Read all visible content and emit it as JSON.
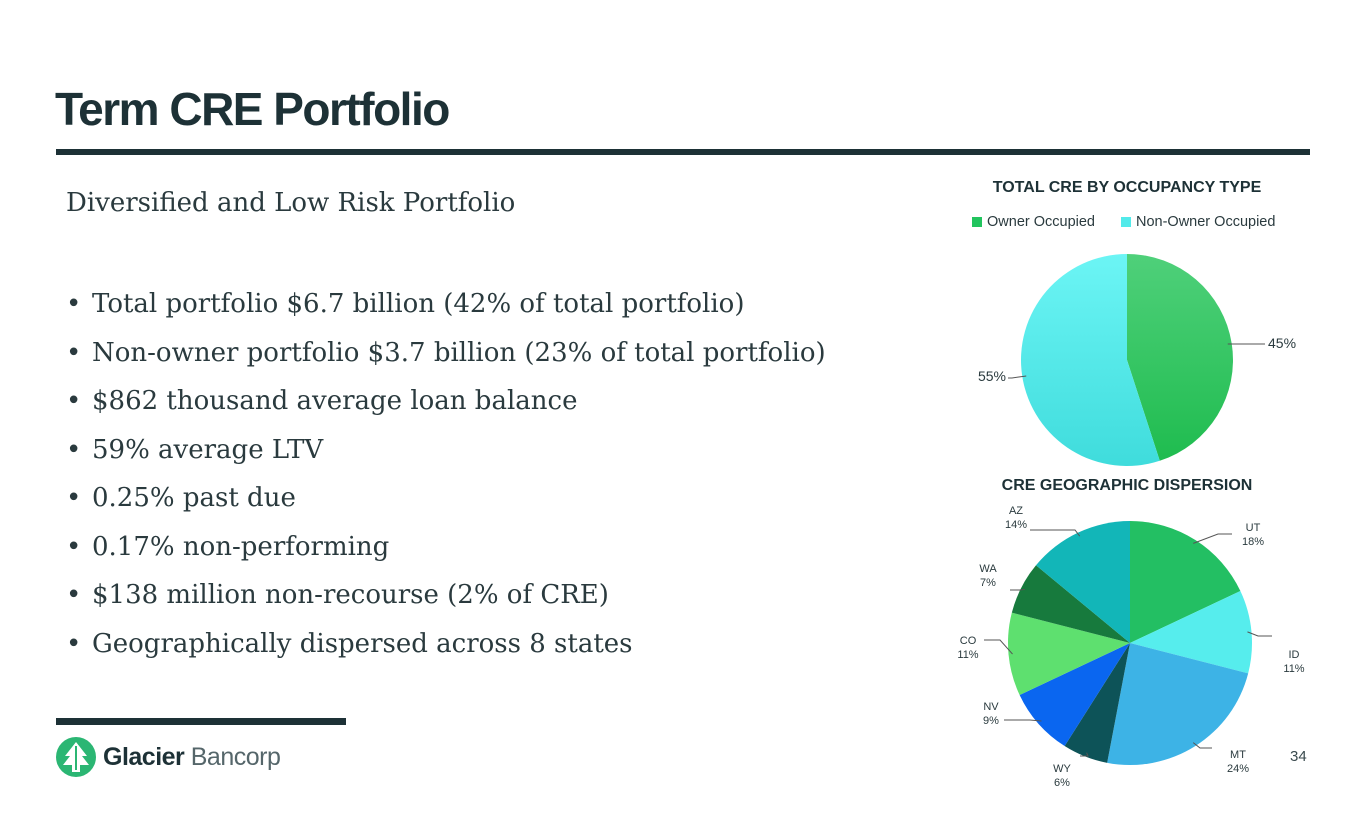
{
  "slide": {
    "title": "Term CRE Portfolio",
    "subtitle": "Diversified and Low Risk Portfolio",
    "bullet_symbol": "•",
    "bullets": [
      "Total portfolio $6.7 billion (42% of total portfolio)",
      "Non-owner portfolio $3.7 billion (23% of total portfolio)",
      "$862 thousand average loan balance",
      "59% average LTV",
      "0.25% past due",
      "0.17% non-performing",
      "$138 million non-recourse (2% of CRE)",
      "Geographically dispersed across 8 states"
    ],
    "page_number": "34"
  },
  "logo": {
    "name_bold": "Glacier",
    "name_light": "Bancorp",
    "icon": "glacier-mountain-icon"
  },
  "colors": {
    "primary_dark": "#1d3136",
    "brand_green": "#2bb673"
  },
  "chart_data": [
    {
      "type": "pie",
      "title": "TOTAL CRE BY OCCUPANCY TYPE",
      "legend_position": "top",
      "slices": [
        {
          "label": "Owner Occupied",
          "value": 45,
          "display": "45%",
          "color": "#22c45e"
        },
        {
          "label": "Non-Owner Occupied",
          "value": 55,
          "display": "55%",
          "color": "#52eaea"
        }
      ]
    },
    {
      "type": "pie",
      "title": "CRE GEOGRAPHIC DISPERSION",
      "slices": [
        {
          "label": "UT",
          "value": 18,
          "display": "18%",
          "color": "#23bf63"
        },
        {
          "label": "ID",
          "value": 11,
          "display": "11%",
          "color": "#56eded"
        },
        {
          "label": "MT",
          "value": 24,
          "display": "24%",
          "color": "#3db3e6"
        },
        {
          "label": "WY",
          "value": 6,
          "display": "6%",
          "color": "#0d5358"
        },
        {
          "label": "NV",
          "value": 9,
          "display": "9%",
          "color": "#0a66f0"
        },
        {
          "label": "CO",
          "value": 11,
          "display": "11%",
          "color": "#5ee06f"
        },
        {
          "label": "WA",
          "value": 7,
          "display": "7%",
          "color": "#177a3d"
        },
        {
          "label": "AZ",
          "value": 14,
          "display": "14%",
          "color": "#12b6b8"
        }
      ]
    }
  ]
}
